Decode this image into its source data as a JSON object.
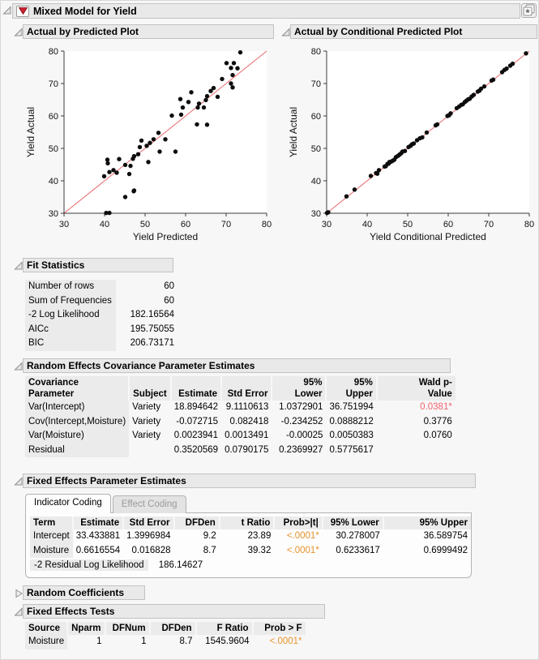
{
  "window": {
    "title": "Mixed Model for Yield"
  },
  "colors": {
    "orange": "#e8922b",
    "red": "#f2636f",
    "fit_line": "#ed686c",
    "point": "#0d0d0d",
    "header_bg": "#e9e9e9",
    "shade_bg": "#ebebeb"
  },
  "sections": {
    "plot1": {
      "title": "Actual by Predicted Plot"
    },
    "plot2": {
      "title": "Actual by Conditional Predicted Plot"
    },
    "fit": {
      "title": "Fit Statistics",
      "table": {
        "columns": [
          {
            "align": "left",
            "shade": true
          },
          {
            "align": "right"
          }
        ],
        "rows": [
          [
            "Number of rows",
            "60"
          ],
          [
            "Sum of Frequencies",
            "60"
          ],
          [
            "-2 Log Likelihood",
            "182.16564"
          ],
          [
            "AICc",
            "195.75055"
          ],
          [
            "BIC",
            "206.73171"
          ]
        ]
      }
    },
    "recov": {
      "title": "Random Effects Covariance Parameter Estimates",
      "table": {
        "columns": [
          {
            "label": "Covariance Parameter",
            "align": "left",
            "shade": true
          },
          {
            "label": "Subject",
            "align": "left"
          },
          {
            "label": "Estimate",
            "align": "right"
          },
          {
            "label": "Std Error",
            "align": "right"
          },
          {
            "label": "95% Lower",
            "align": "right"
          },
          {
            "label": "95% Upper",
            "align": "right"
          },
          {
            "label": "Wald p-\nValue",
            "align": "right"
          }
        ],
        "rows": [
          [
            "Var(Intercept)",
            "Variety",
            "18.894642",
            "9.1110613",
            "1.0372901",
            "36.751994",
            {
              "t": "0.0381*",
              "c": "red"
            }
          ],
          [
            "Cov(Intercept,Moisture)",
            "Variety",
            "-0.072715",
            "0.082418",
            "-0.234252",
            "0.0888212",
            "0.3776"
          ],
          [
            "Var(Moisture)",
            "Variety",
            "0.0023941",
            "0.0013491",
            "-0.00025",
            "0.0050383",
            "0.0760"
          ],
          [
            "Residual",
            "",
            "0.3520569",
            "0.0790175",
            "0.2369927",
            "0.5775617",
            ""
          ]
        ]
      }
    },
    "fe": {
      "title": "Fixed Effects Parameter Estimates",
      "tabs": [
        "Indicator Coding",
        "Effect Coding"
      ],
      "table": {
        "columns": [
          {
            "label": "Term",
            "align": "left",
            "shade": true
          },
          {
            "label": "Estimate",
            "align": "right"
          },
          {
            "label": "Std Error",
            "align": "right"
          },
          {
            "label": "DFDen",
            "align": "right"
          },
          {
            "label": "t Ratio",
            "align": "right"
          },
          {
            "label": "Prob>|t|",
            "align": "right"
          },
          {
            "label": "95% Lower",
            "align": "right"
          },
          {
            "label": "95% Upper",
            "align": "right"
          }
        ],
        "rows": [
          [
            "Intercept",
            "33.433881",
            "1.3996984",
            "9.2",
            "23.89",
            {
              "t": "<.0001*",
              "c": "orange"
            },
            "30.278007",
            "36.589754"
          ],
          [
            "Moisture",
            "0.6616554",
            "0.016828",
            "8.7",
            "39.32",
            {
              "t": "<.0001*",
              "c": "orange"
            },
            "0.6233617",
            "0.6999492"
          ]
        ]
      },
      "footer_label": "-2 Residual Log Likelihood",
      "footer_value": "186.14627"
    },
    "rc": {
      "title": "Random Coefficients"
    },
    "fet": {
      "title": "Fixed Effects Tests",
      "table": {
        "columns": [
          {
            "label": "Source",
            "align": "left",
            "shade": true
          },
          {
            "label": "Nparm",
            "align": "right"
          },
          {
            "label": "DFNum",
            "align": "right"
          },
          {
            "label": "DFDen",
            "align": "right"
          },
          {
            "label": "F Ratio",
            "align": "right"
          },
          {
            "label": "Prob > F",
            "align": "right"
          }
        ],
        "rows": [
          [
            "Moisture",
            "1",
            "1",
            "8.7",
            "1545.9604",
            {
              "t": "<.0001*",
              "c": "orange"
            }
          ]
        ]
      }
    }
  },
  "chart_data": [
    {
      "type": "scatter",
      "title": "Actual by Predicted Plot",
      "xlabel": "Yield Predicted",
      "ylabel": "Yield Actual",
      "xlim": [
        30,
        80
      ],
      "ylim": [
        30,
        80
      ],
      "xticks": [
        30,
        40,
        50,
        60,
        70,
        80
      ],
      "yticks": [
        30,
        40,
        50,
        60,
        70,
        80
      ],
      "identity_line": true,
      "points": [
        [
          40.4,
          30.1
        ],
        [
          41.2,
          30.1
        ],
        [
          45.1,
          35.0
        ],
        [
          47.3,
          37.0
        ],
        [
          47.2,
          36.8
        ],
        [
          39.9,
          41.4
        ],
        [
          41.2,
          42.7
        ],
        [
          40.7,
          46.5
        ],
        [
          40.8,
          45.4
        ],
        [
          42.2,
          43.3
        ],
        [
          43.0,
          42.5
        ],
        [
          43.6,
          46.7
        ],
        [
          45.1,
          44.9
        ],
        [
          46.1,
          42.1
        ],
        [
          46.4,
          44.6
        ],
        [
          47.0,
          46.8
        ],
        [
          47.3,
          47.6
        ],
        [
          48.3,
          48.2
        ],
        [
          48.7,
          50.4
        ],
        [
          49.1,
          52.4
        ],
        [
          50.4,
          50.8
        ],
        [
          50.8,
          45.8
        ],
        [
          51.2,
          51.7
        ],
        [
          52.1,
          52.8
        ],
        [
          53.3,
          54.8
        ],
        [
          53.6,
          49.0
        ],
        [
          55.0,
          52.8
        ],
        [
          56.6,
          60.1
        ],
        [
          57.5,
          49.0
        ],
        [
          58.7,
          65.2
        ],
        [
          58.9,
          60.4
        ],
        [
          59.3,
          62.6
        ],
        [
          60.7,
          64.3
        ],
        [
          61.4,
          67.3
        ],
        [
          62.8,
          57.4
        ],
        [
          63.0,
          62.6
        ],
        [
          63.3,
          63.8
        ],
        [
          64.5,
          62.6
        ],
        [
          65.0,
          64.9
        ],
        [
          65.3,
          66.1
        ],
        [
          65.3,
          57.3
        ],
        [
          66.2,
          67.7
        ],
        [
          66.9,
          68.6
        ],
        [
          67.9,
          65.9
        ],
        [
          69.0,
          71.4
        ],
        [
          70.1,
          76.3
        ],
        [
          71.2,
          74.8
        ],
        [
          71.2,
          70.0
        ],
        [
          71.6,
          72.6
        ],
        [
          71.6,
          68.8
        ],
        [
          71.9,
          76.3
        ],
        [
          72.8,
          74.7
        ],
        [
          73.5,
          79.6
        ]
      ]
    },
    {
      "type": "scatter",
      "title": "Actual by Conditional Predicted Plot",
      "xlabel": "Yield Conditional Predicted",
      "ylabel": "Yield Actual",
      "xlim": [
        30,
        80
      ],
      "ylim": [
        30,
        80
      ],
      "xticks": [
        30,
        40,
        50,
        60,
        70,
        80
      ],
      "yticks": [
        30,
        40,
        50,
        60,
        70,
        80
      ],
      "identity_line": true,
      "points": [
        [
          30.1,
          30.1
        ],
        [
          30.4,
          30.3
        ],
        [
          34.9,
          35.2
        ],
        [
          36.9,
          37.3
        ],
        [
          40.9,
          41.5
        ],
        [
          42.2,
          42.4
        ],
        [
          42.5,
          42.2
        ],
        [
          42.9,
          43.3
        ],
        [
          44.3,
          44.4
        ],
        [
          44.6,
          44.5
        ],
        [
          45.0,
          45.2
        ],
        [
          45.3,
          45.3
        ],
        [
          45.5,
          45.8
        ],
        [
          45.9,
          45.9
        ],
        [
          46.3,
          46.2
        ],
        [
          46.7,
          46.5
        ],
        [
          47.1,
          47.3
        ],
        [
          47.6,
          47.7
        ],
        [
          48.0,
          48.1
        ],
        [
          48.4,
          48.5
        ],
        [
          48.7,
          49.0
        ],
        [
          49.3,
          49.2
        ],
        [
          50.2,
          50.4
        ],
        [
          50.7,
          50.8
        ],
        [
          51.1,
          51.3
        ],
        [
          51.5,
          51.5
        ],
        [
          52.3,
          52.5
        ],
        [
          53.0,
          53.1
        ],
        [
          53.6,
          53.4
        ],
        [
          54.7,
          54.9
        ],
        [
          56.9,
          57.1
        ],
        [
          57.3,
          57.4
        ],
        [
          59.8,
          60.0
        ],
        [
          60.2,
          60.2
        ],
        [
          60.6,
          60.8
        ],
        [
          62.1,
          62.4
        ],
        [
          62.7,
          62.9
        ],
        [
          63.2,
          63.4
        ],
        [
          63.6,
          63.6
        ],
        [
          64.1,
          64.3
        ],
        [
          64.5,
          64.7
        ],
        [
          64.9,
          65.1
        ],
        [
          65.3,
          65.3
        ],
        [
          65.8,
          66.0
        ],
        [
          66.3,
          66.5
        ],
        [
          67.3,
          67.5
        ],
        [
          67.7,
          67.8
        ],
        [
          68.1,
          68.4
        ],
        [
          68.9,
          69.1
        ],
        [
          70.7,
          70.9
        ],
        [
          71.1,
          71.2
        ],
        [
          73.3,
          73.5
        ],
        [
          73.9,
          74.2
        ],
        [
          74.4,
          74.6
        ],
        [
          75.3,
          75.5
        ],
        [
          75.9,
          76.1
        ],
        [
          79.2,
          79.3
        ]
      ]
    }
  ]
}
